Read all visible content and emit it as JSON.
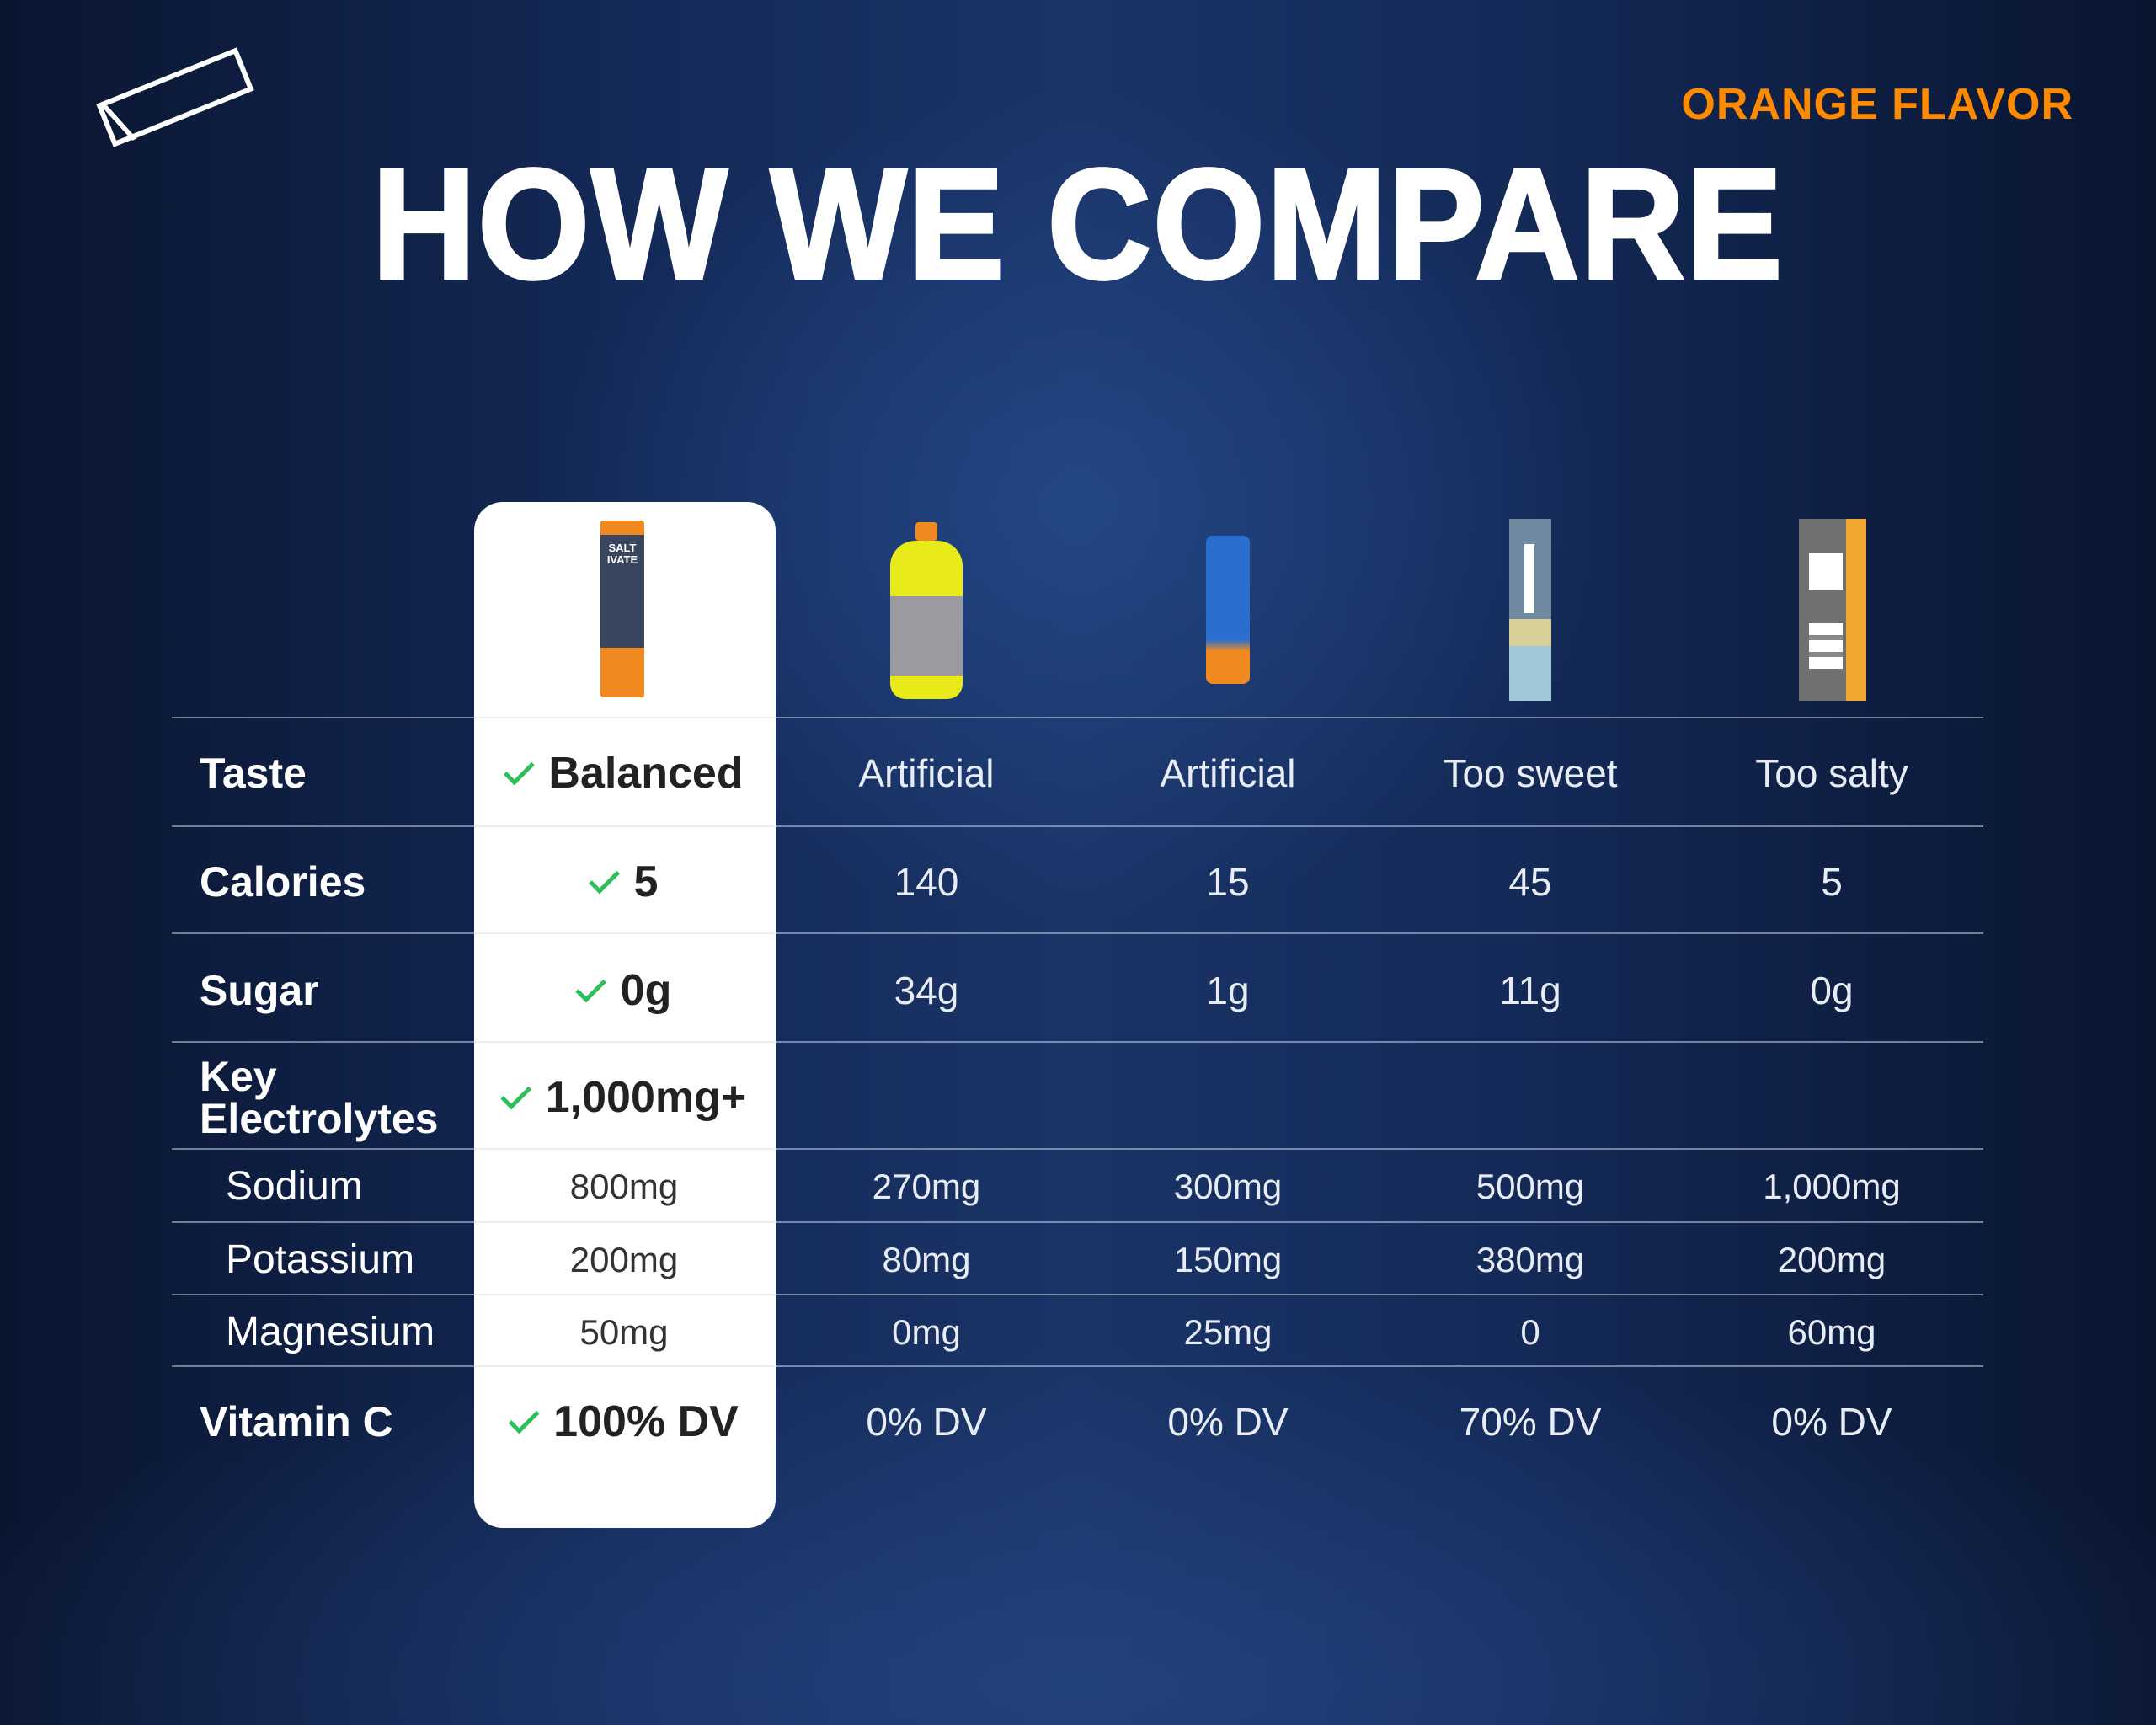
{
  "header": {
    "flavor": "ORANGE FLAVOR",
    "title": "HOW WE COMPARE"
  },
  "products": [
    {
      "name": "Saltivate stick pack",
      "pack_text": "SALT IVATE"
    },
    {
      "name": "yellow sports drink bottle"
    },
    {
      "name": "blue electrolyte tablet tube"
    },
    {
      "name": "light blue stick pack"
    },
    {
      "name": "grey and orange stick pack"
    }
  ],
  "rows": [
    {
      "label": "Taste",
      "values": [
        "Balanced",
        "Artificial",
        "Artificial",
        "Too sweet",
        "Too salty"
      ]
    },
    {
      "label": "Calories",
      "values": [
        "5",
        "140",
        "15",
        "45",
        "5"
      ]
    },
    {
      "label": "Sugar",
      "values": [
        "0g",
        "34g",
        "1g",
        "11g",
        "0g"
      ]
    },
    {
      "label": "Key Electrolytes",
      "values": [
        "1,000mg+",
        "",
        "",
        "",
        ""
      ]
    },
    {
      "label": "Sodium",
      "values": [
        "800mg",
        "270mg",
        "300mg",
        "500mg",
        "1,000mg"
      ]
    },
    {
      "label": "Potassium",
      "values": [
        "200mg",
        "80mg",
        "150mg",
        "380mg",
        "200mg"
      ]
    },
    {
      "label": "Magnesium",
      "values": [
        "50mg",
        "0mg",
        "25mg",
        "0",
        "60mg"
      ]
    },
    {
      "label": "Vitamin C",
      "values": [
        "100% DV",
        "0% DV",
        "0% DV",
        "70% DV",
        "0% DV"
      ]
    }
  ],
  "colors": {
    "accent": "#ff8a00",
    "check": "#2fbf5a"
  }
}
